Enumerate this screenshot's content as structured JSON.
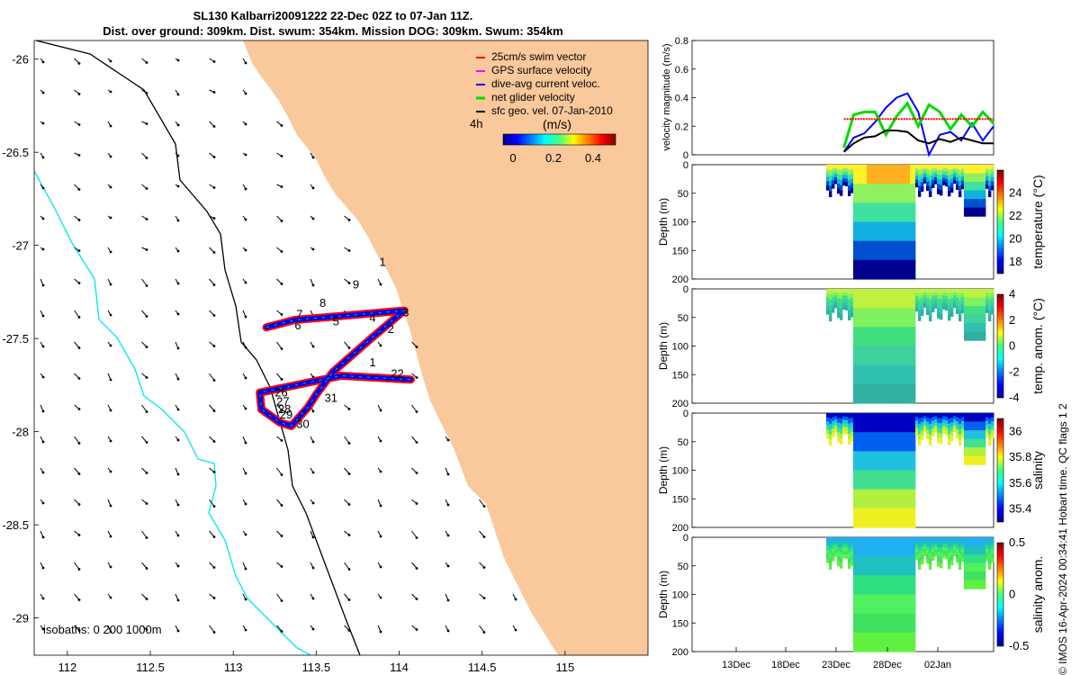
{
  "title": {
    "line1": "SL130 Kalbarri20091222 22-Dec 02Z to 07-Jan 11Z.",
    "line2": "Dist. over ground: 309km. Dist. swum: 354km. Mission DOG: 309km. Swum: 354km"
  },
  "colors": {
    "land": "#f9c89b",
    "isobath_shallow": "#000000",
    "isobath_deep": "#00e5ee",
    "swim_vector": "#ff0000",
    "gps_velocity": "#ff00ff",
    "dive_avg": "#0000ff",
    "net_glider": "#00dd00",
    "sfc_geo": "#000000"
  },
  "chart_data": [
    {
      "type": "map",
      "name": "glider-track-map",
      "xlim": [
        111.8,
        115.5
      ],
      "ylim": [
        -29.2,
        -25.9
      ],
      "xticks": [
        "112",
        "112.5",
        "113",
        "113.5",
        "114",
        "114.5",
        "115"
      ],
      "yticks": [
        "-26",
        "-26.5",
        "-27",
        "-27.5",
        "-28",
        "-28.5",
        "-29"
      ],
      "legend": [
        "25cm/s swim vector",
        "GPS surface velocity",
        "dive-avg current veloc.",
        "net glider velocity",
        "sfc geo. vel. 07-Jan-2010"
      ],
      "legend_note": "4h",
      "colorbar": {
        "label": "(m/s)",
        "ticks": [
          "0",
          "0.2",
          "0.4"
        ],
        "range": [
          0,
          0.5
        ]
      },
      "isobaths_label": "isobaths: 0   200  1000m",
      "day_labels": [
        {
          "text": "1",
          "lon": 113.82,
          "lat": -27.65
        },
        {
          "text": "2",
          "lon": 113.93,
          "lat": -27.47
        },
        {
          "text": "3",
          "lon": 114.02,
          "lat": -27.38
        },
        {
          "text": "4",
          "lon": 113.82,
          "lat": -27.41
        },
        {
          "text": "5",
          "lon": 113.6,
          "lat": -27.43
        },
        {
          "text": "6",
          "lon": 113.37,
          "lat": -27.45
        },
        {
          "text": "7",
          "lon": 113.38,
          "lat": -27.39
        },
        {
          "text": "8",
          "lon": 113.52,
          "lat": -27.33
        },
        {
          "text": "9",
          "lon": 113.72,
          "lat": -27.23
        },
        {
          "text": "1",
          "lon": 113.88,
          "lat": -27.11
        },
        {
          "text": "22",
          "lon": 113.95,
          "lat": -27.71
        },
        {
          "text": "26",
          "lon": 113.25,
          "lat": -27.81
        },
        {
          "text": "27",
          "lon": 113.26,
          "lat": -27.86
        },
        {
          "text": "28",
          "lon": 113.27,
          "lat": -27.9
        },
        {
          "text": "29",
          "lon": 113.28,
          "lat": -27.93
        },
        {
          "text": "30",
          "lon": 113.38,
          "lat": -27.98
        },
        {
          "text": "31",
          "lon": 113.55,
          "lat": -27.84
        }
      ],
      "track_lon": [
        113.2,
        113.37,
        114.03,
        113.83,
        113.6,
        113.5,
        113.45,
        113.35,
        113.28,
        113.17,
        113.16,
        113.65,
        114.07
      ],
      "track_lat": [
        -27.44,
        -27.4,
        -27.35,
        -27.5,
        -27.68,
        -27.8,
        -27.87,
        -27.97,
        -27.95,
        -27.88,
        -27.79,
        -27.7,
        -27.72
      ]
    },
    {
      "type": "line",
      "name": "velocity-magnitude",
      "ylabel": "velocity magnitude (m/s)",
      "ylim": [
        0,
        0.8
      ],
      "yticks": [
        "0",
        "0.2",
        "0.4",
        "0.6",
        "0.8"
      ],
      "xlim": [
        0,
        28
      ],
      "x": [
        14.1,
        15,
        16,
        17,
        18,
        19,
        20,
        21,
        22,
        23,
        24,
        25,
        26,
        27,
        28
      ],
      "series": [
        {
          "name": "dive-avg current veloc.",
          "color": "#0000ff",
          "values": [
            0.02,
            0.12,
            0.15,
            0.23,
            0.33,
            0.4,
            0.43,
            0.3,
            0.0,
            0.14,
            0.16,
            0.1,
            0.22,
            0.1,
            0.2
          ]
        },
        {
          "name": "net glider velocity",
          "color": "#00dd00",
          "values": [
            0.05,
            0.28,
            0.3,
            0.3,
            0.14,
            0.27,
            0.36,
            0.2,
            0.35,
            0.3,
            0.18,
            0.28,
            0.2,
            0.3,
            0.22
          ]
        },
        {
          "name": "25cm/s swim vector",
          "color": "#ff0000",
          "values": [
            0.25,
            0.25,
            0.25,
            0.25,
            0.25,
            0.25,
            0.25,
            0.25,
            0.25,
            0.25,
            0.25,
            0.25,
            0.25,
            0.25,
            0.25
          ]
        },
        {
          "name": "sfc geo. vel.",
          "color": "#000000",
          "values": [
            0.02,
            0.08,
            0.12,
            0.13,
            0.17,
            0.17,
            0.16,
            0.1,
            0.08,
            0.11,
            0.09,
            0.12,
            0.1,
            0.08,
            0.08
          ]
        }
      ]
    },
    {
      "type": "heatmap",
      "name": "temperature-section",
      "ylabel": "Depth (m)",
      "yticks": [
        "0",
        "50",
        "100",
        "150",
        "200"
      ],
      "ylim": [
        0,
        200
      ],
      "colorbar": {
        "label": "temperature (°C)",
        "ticks": [
          "18",
          "20",
          "22",
          "24"
        ],
        "range": [
          17,
          26
        ]
      }
    },
    {
      "type": "heatmap",
      "name": "temperature-anomaly-section",
      "ylabel": "Depth (m)",
      "yticks": [
        "0",
        "50",
        "100",
        "150",
        "200"
      ],
      "ylim": [
        0,
        200
      ],
      "colorbar": {
        "label": "temp. anom. (°C)",
        "ticks": [
          "-4",
          "-2",
          "0",
          "2",
          "4"
        ],
        "range": [
          -4,
          4
        ]
      }
    },
    {
      "type": "heatmap",
      "name": "salinity-section",
      "ylabel": "Depth (m)",
      "yticks": [
        "0",
        "50",
        "100",
        "150",
        "200"
      ],
      "ylim": [
        0,
        200
      ],
      "colorbar": {
        "label": "salinity",
        "ticks": [
          "35.4",
          "35.6",
          "35.8",
          "36"
        ],
        "range": [
          35.3,
          36.1
        ]
      }
    },
    {
      "type": "heatmap",
      "name": "salinity-anomaly-section",
      "ylabel": "Depth (m)",
      "yticks": [
        "0",
        "50",
        "100",
        "150",
        "200"
      ],
      "ylim": [
        0,
        200
      ],
      "xticks": [
        "13Dec",
        "18Dec",
        "23Dec",
        "28Dec",
        "02Jan"
      ],
      "colorbar": {
        "label": "salinity anom.",
        "ticks": [
          "-0.5",
          "0",
          "0.5"
        ],
        "range": [
          -0.5,
          0.5
        ]
      }
    }
  ],
  "footer": "© IMOS 16-Apr-2024 00:34:41 Hobart time. QC flags 1  2"
}
